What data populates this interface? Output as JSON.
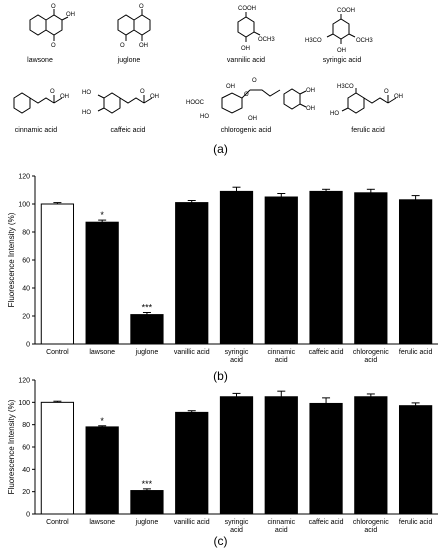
{
  "panel_labels": {
    "a": "(a)",
    "b": "(b)",
    "c": "(c)"
  },
  "structures": [
    {
      "name": "lawsone",
      "substituents": [
        "O",
        "OH",
        "O"
      ]
    },
    {
      "name": "juglone",
      "substituents": [
        "O",
        "OH",
        "O"
      ]
    },
    {
      "name": "vannilic acid",
      "substituents": [
        "COOH",
        "OH",
        "OCH3"
      ]
    },
    {
      "name": "syringic acid",
      "substituents": [
        "COOH",
        "H3CO",
        "OCH3",
        "OH"
      ]
    },
    {
      "name": "cinnamic acid",
      "substituents": [
        "O",
        "OH"
      ]
    },
    {
      "name": "caffeic acid",
      "substituents": [
        "HO",
        "HO",
        "O",
        "OH"
      ]
    },
    {
      "name": "chlorogenic acid",
      "substituents": [
        "HOOC",
        "HO",
        "OH",
        "OH",
        "O",
        "O",
        "OH",
        "OH"
      ]
    },
    {
      "name": "ferulic acid",
      "substituents": [
        "H3CO",
        "HO",
        "O",
        "OH"
      ]
    }
  ],
  "chart_data": [
    {
      "type": "bar",
      "panel": "(b)",
      "ylabel": "Fluorescence  Intensity (%)",
      "ylim": [
        0,
        120
      ],
      "yticks": [
        0,
        20,
        40,
        60,
        80,
        100,
        120
      ],
      "categories": [
        "Control",
        "lawsone",
        "juglone",
        "vanillic acid",
        "syringic acid",
        "cinnamic acid",
        "caffeic acid",
        "chlorogenic acid",
        "ferulic acid"
      ],
      "category_lines": [
        [
          "Control"
        ],
        [
          "lawsone"
        ],
        [
          "juglone"
        ],
        [
          "vanillic acid"
        ],
        [
          "syringic",
          "acid"
        ],
        [
          "cinnamic",
          "acid"
        ],
        [
          "caffeic acid"
        ],
        [
          "chlorogenic",
          "acid"
        ],
        [
          "ferulic acid"
        ]
      ],
      "values": [
        100,
        87,
        21,
        101,
        109,
        105,
        109,
        108,
        103
      ],
      "errors": [
        1,
        1.5,
        1.5,
        1.5,
        3,
        2.5,
        1.5,
        2.5,
        3
      ],
      "significance": [
        "",
        "*",
        "***",
        "",
        "",
        "",
        "",
        "",
        ""
      ],
      "bar_colors": [
        "#ffffff",
        "#000000",
        "#000000",
        "#000000",
        "#000000",
        "#000000",
        "#000000",
        "#000000",
        "#000000"
      ]
    },
    {
      "type": "bar",
      "panel": "(c)",
      "ylabel": "Fluorescence  Intensity (%)",
      "ylim": [
        0,
        120
      ],
      "yticks": [
        0,
        20,
        40,
        60,
        80,
        100,
        120
      ],
      "categories": [
        "Control",
        "lawsone",
        "juglone",
        "vanillic acid",
        "syringic acid",
        "cinnamic acid",
        "caffeic acid",
        "chlorogenic acid",
        "ferulic acid"
      ],
      "category_lines": [
        [
          "Control"
        ],
        [
          "lawsone"
        ],
        [
          "juglone"
        ],
        [
          "vanillic acid"
        ],
        [
          "syringic",
          "acid"
        ],
        [
          "cinnamic",
          "acid"
        ],
        [
          "caffeic acid"
        ],
        [
          "chlorogenic",
          "acid"
        ],
        [
          "ferulic acid"
        ]
      ],
      "values": [
        100,
        78,
        21,
        91,
        105,
        105,
        99,
        105,
        97
      ],
      "errors": [
        1,
        1,
        1.5,
        1.5,
        3,
        5,
        5,
        2.5,
        2.5
      ],
      "significance": [
        "",
        "*",
        "***",
        "",
        "",
        "",
        "",
        "",
        ""
      ],
      "bar_colors": [
        "#ffffff",
        "#000000",
        "#000000",
        "#000000",
        "#000000",
        "#000000",
        "#000000",
        "#000000",
        "#000000"
      ]
    }
  ]
}
